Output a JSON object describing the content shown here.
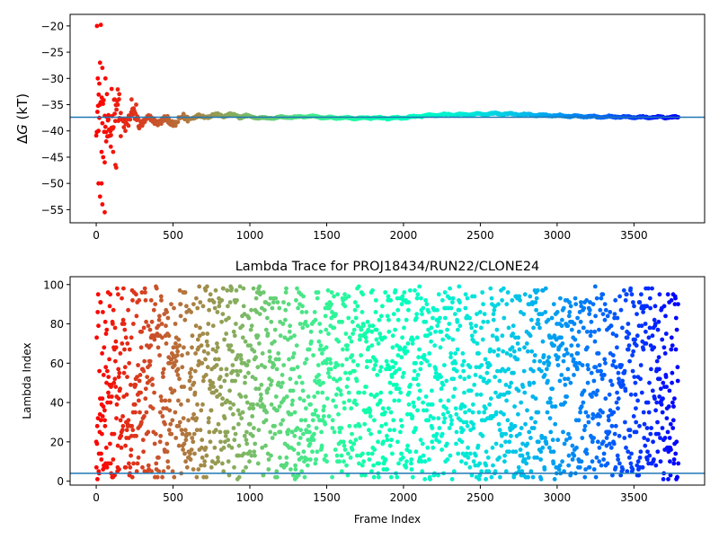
{
  "chart_data": [
    {
      "type": "scatter",
      "title": "",
      "xlabel": "",
      "ylabel_prefix": "Δ",
      "ylabel_var": "G",
      "ylabel_suffix": " (kT)",
      "xlim": [
        -170,
        3960
      ],
      "ylim": [
        -57.5,
        -17.8
      ],
      "xticks": [
        0,
        500,
        1000,
        1500,
        2000,
        2500,
        3000,
        3500
      ],
      "yticks": [
        -20,
        -25,
        -30,
        -35,
        -40,
        -45,
        -50,
        -55
      ],
      "xtick_labels": [
        "0",
        "500",
        "1000",
        "1500",
        "2000",
        "2500",
        "3000",
        "3500"
      ],
      "ytick_labels": [
        "−20",
        "−25",
        "−30",
        "−35",
        "−40",
        "−45",
        "−50",
        "−55"
      ],
      "hline": -37.4,
      "hline_color": "#1f77b4",
      "colormap": "rainbow",
      "n_frames": 3790,
      "trace_knots": [
        [
          0,
          -38
        ],
        [
          200,
          -37.5
        ],
        [
          300,
          -38
        ],
        [
          400,
          -38
        ],
        [
          500,
          -38.3
        ],
        [
          600,
          -37.5
        ],
        [
          700,
          -37.2
        ],
        [
          800,
          -37
        ],
        [
          900,
          -37.1
        ],
        [
          1000,
          -37.3
        ],
        [
          1100,
          -37.6
        ],
        [
          1200,
          -37.4
        ],
        [
          1300,
          -37.4
        ],
        [
          1400,
          -37.2
        ],
        [
          1500,
          -37.5
        ],
        [
          1600,
          -37.5
        ],
        [
          1700,
          -37.6
        ],
        [
          1800,
          -37.5
        ],
        [
          1900,
          -37.6
        ],
        [
          2000,
          -37.5
        ],
        [
          2100,
          -37.2
        ],
        [
          2200,
          -37.0
        ],
        [
          2300,
          -36.9
        ],
        [
          2400,
          -36.9
        ],
        [
          2500,
          -36.8
        ],
        [
          2600,
          -36.7
        ],
        [
          2700,
          -36.8
        ],
        [
          2800,
          -36.9
        ],
        [
          2900,
          -37.0
        ],
        [
          3000,
          -37.1
        ],
        [
          3100,
          -37.2
        ],
        [
          3200,
          -37.3
        ],
        [
          3300,
          -37.3
        ],
        [
          3400,
          -37.3
        ],
        [
          3500,
          -37.4
        ],
        [
          3600,
          -37.4
        ],
        [
          3700,
          -37.4
        ],
        [
          3790,
          -37.4
        ]
      ],
      "early_outliers": [
        [
          5,
          -20
        ],
        [
          30,
          -19.8
        ],
        [
          25,
          -27
        ],
        [
          40,
          -28
        ],
        [
          10,
          -30
        ],
        [
          20,
          -31
        ],
        [
          60,
          -30
        ],
        [
          70,
          -33
        ],
        [
          15,
          -40
        ],
        [
          35,
          -44
        ],
        [
          45,
          -45
        ],
        [
          55,
          -46
        ],
        [
          15,
          -50
        ],
        [
          35,
          -50
        ],
        [
          25,
          -52.5
        ],
        [
          40,
          -54
        ],
        [
          55,
          -55.5
        ],
        [
          80,
          -41
        ],
        [
          95,
          -43
        ],
        [
          110,
          -44
        ],
        [
          125,
          -46.5
        ],
        [
          130,
          -47
        ],
        [
          100,
          -32
        ],
        [
          120,
          -34
        ],
        [
          140,
          -35
        ],
        [
          160,
          -41
        ],
        [
          190,
          -40
        ],
        [
          210,
          -39
        ],
        [
          150,
          -33
        ],
        [
          230,
          -34
        ],
        [
          260,
          -35
        ],
        [
          300,
          -39
        ],
        [
          80,
          -37
        ],
        [
          65,
          -42
        ]
      ]
    },
    {
      "type": "scatter",
      "title": "Lambda Trace for PROJ18434/RUN22/CLONE24",
      "xlabel": "Frame Index",
      "ylabel": "Lambda Index",
      "xlim": [
        -170,
        3960
      ],
      "ylim": [
        -2,
        104
      ],
      "xticks": [
        0,
        500,
        1000,
        1500,
        2000,
        2500,
        3000,
        3500
      ],
      "yticks": [
        0,
        20,
        40,
        60,
        80,
        100
      ],
      "xtick_labels": [
        "0",
        "500",
        "1000",
        "1500",
        "2000",
        "2500",
        "3000",
        "3500"
      ],
      "ytick_labels": [
        "0",
        "20",
        "40",
        "60",
        "80",
        "100"
      ],
      "hline": 4,
      "hline_color": "#1f77b4",
      "colormap": "rainbow",
      "n_frames": 3790,
      "lambda_range": [
        1,
        99
      ]
    }
  ]
}
